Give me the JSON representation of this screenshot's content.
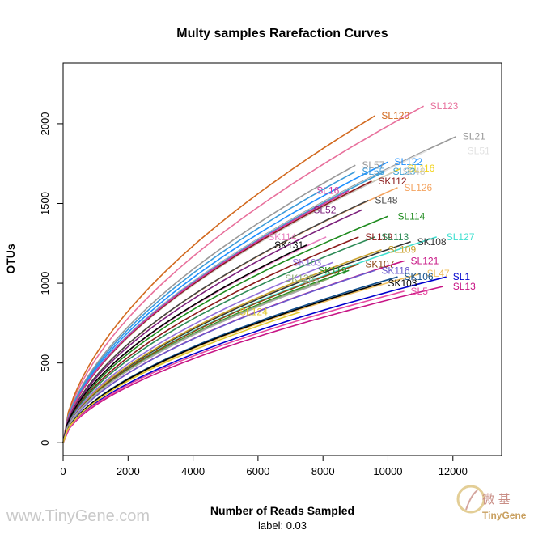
{
  "chart_data": {
    "type": "line",
    "title": "Multy samples Rarefaction Curves",
    "xlabel": "Number of Reads Sampled",
    "ylabel": "OTUs",
    "subtitle": "label: 0.03",
    "xlim": [
      0,
      13500
    ],
    "ylim": [
      -80,
      2380
    ],
    "xticks": [
      0,
      2000,
      4000,
      6000,
      8000,
      10000,
      12000
    ],
    "yticks": [
      0,
      500,
      1000,
      1500,
      2000
    ],
    "grid": false,
    "legend": "none",
    "series": [
      {
        "name": "SL123",
        "end_x": 11100,
        "end_y": 2110,
        "color": "#e8709c",
        "label_dx": 8,
        "label_dy": 0
      },
      {
        "name": "SL120",
        "end_x": 9600,
        "end_y": 2050,
        "color": "#d2691e",
        "label_dx": 8,
        "label_dy": 0
      },
      {
        "name": "SL21",
        "end_x": 12100,
        "end_y": 1920,
        "color": "#999999",
        "label_dx": 8,
        "label_dy": 0
      },
      {
        "name": "SL51",
        "end_x": 11200,
        "end_y": 1830,
        "color": "#e2e2e2",
        "label_dx": 50,
        "label_dy": 0
      },
      {
        "name": "SL122",
        "end_x": 10000,
        "end_y": 1760,
        "color": "#1e90ff",
        "label_dx": 8,
        "label_dy": 0
      },
      {
        "name": "SL116",
        "end_x": 10400,
        "end_y": 1720,
        "color": "#f2d31f",
        "label_dx": 8,
        "label_dy": 0
      },
      {
        "name": "SL57",
        "end_x": 9000,
        "end_y": 1740,
        "color": "#999999",
        "label_dx": 8,
        "label_dy": 0
      },
      {
        "name": "SL55",
        "end_x": 9000,
        "end_y": 1700,
        "color": "#3a9ad9",
        "label_dx": 8,
        "label_dy": 0
      },
      {
        "name": "SL23",
        "end_x": 9900,
        "end_y": 1700,
        "color": "#3aa0d6",
        "label_dx": 10,
        "label_dy": 0
      },
      {
        "name": "SL48",
        "end_x": 10200,
        "end_y": 1700,
        "color": "#c8c8c8",
        "label_dx": 10,
        "label_dy": 0
      },
      {
        "name": "SK112",
        "end_x": 9500,
        "end_y": 1640,
        "color": "#8b1a1a",
        "label_dx": 8,
        "label_dy": 0
      },
      {
        "name": "SL126",
        "end_x": 10300,
        "end_y": 1600,
        "color": "#f4a460",
        "label_dx": 8,
        "label_dy": 0
      },
      {
        "name": "SL16",
        "end_x": 8800,
        "end_y": 1580,
        "color": "#d4379e",
        "label_dx": -40,
        "label_dy": 0
      },
      {
        "name": "SL48",
        "end_x": 9400,
        "end_y": 1520,
        "color": "#444444",
        "label_dx": 8,
        "label_dy": 0
      },
      {
        "name": "SL52",
        "end_x": 9200,
        "end_y": 1460,
        "color": "#7b1f7b",
        "label_dx": -60,
        "label_dy": 0
      },
      {
        "name": "SL114",
        "end_x": 10000,
        "end_y": 1420,
        "color": "#1e8b1e",
        "label_dx": 12,
        "label_dy": 0
      },
      {
        "name": "SK114",
        "end_x": 8100,
        "end_y": 1290,
        "color": "#e87fbf",
        "label_dx": -72,
        "label_dy": 0
      },
      {
        "name": "SL119",
        "end_x": 9100,
        "end_y": 1290,
        "color": "#8b1a1a",
        "label_dx": 8,
        "label_dy": 0
      },
      {
        "name": "SL113",
        "end_x": 9600,
        "end_y": 1290,
        "color": "#2e8b57",
        "label_dx": 8,
        "label_dy": 0
      },
      {
        "name": "SL127",
        "end_x": 11500,
        "end_y": 1290,
        "color": "#40e0d0",
        "label_dx": 12,
        "label_dy": 0
      },
      {
        "name": "SK108",
        "end_x": 10700,
        "end_y": 1260,
        "color": "#333333",
        "label_dx": 8,
        "label_dy": 0
      },
      {
        "name": "SK131",
        "end_x": 7500,
        "end_y": 1240,
        "color": "#000000",
        "label_dx": -40,
        "label_dy": 0
      },
      {
        "name": "SL109",
        "end_x": 9800,
        "end_y": 1210,
        "color": "#c8a02b",
        "label_dx": 8,
        "label_dy": 0
      },
      {
        "name": "SL121",
        "end_x": 10500,
        "end_y": 1140,
        "color": "#c71585",
        "label_dx": 8,
        "label_dy": 0
      },
      {
        "name": "SK103",
        "end_x": 8300,
        "end_y": 1130,
        "color": "#9370db",
        "label_dx": -50,
        "label_dy": 0
      },
      {
        "name": "SK107",
        "end_x": 9100,
        "end_y": 1120,
        "color": "#8b4513",
        "label_dx": 8,
        "label_dy": 0
      },
      {
        "name": "SK119",
        "end_x": 8800,
        "end_y": 1080,
        "color": "#1e8b1e",
        "label_dx": -38,
        "label_dy": 0
      },
      {
        "name": "SK116",
        "end_x": 9600,
        "end_y": 1080,
        "color": "#6a5acd",
        "label_dx": 8,
        "label_dy": 0
      },
      {
        "name": "SL47",
        "end_x": 11000,
        "end_y": 1060,
        "color": "#f0c060",
        "label_dx": 8,
        "label_dy": 0
      },
      {
        "name": "SL1",
        "end_x": 11800,
        "end_y": 1040,
        "color": "#0000cd",
        "label_dx": 8,
        "label_dy": 0
      },
      {
        "name": "SK106",
        "end_x": 10300,
        "end_y": 1040,
        "color": "#104e8b",
        "label_dx": 8,
        "label_dy": 0
      },
      {
        "name": "SK128",
        "end_x": 8200,
        "end_y": 1030,
        "color": "#87a96b",
        "label_dx": -55,
        "label_dy": 0
      },
      {
        "name": "SL7",
        "end_x": 7900,
        "end_y": 1000,
        "color": "#aaaaaa",
        "label_dx": -22,
        "label_dy": 0
      },
      {
        "name": "SK103",
        "end_x": 9800,
        "end_y": 1000,
        "color": "#000000",
        "label_dx": 8,
        "label_dy": 0
      },
      {
        "name": "SL13",
        "end_x": 11700,
        "end_y": 980,
        "color": "#c71585",
        "label_dx": 12,
        "label_dy": 0
      },
      {
        "name": "SL5",
        "end_x": 10500,
        "end_y": 950,
        "color": "#e64aa0",
        "label_dx": 8,
        "label_dy": 0
      },
      {
        "name": "SL124",
        "end_x": 7300,
        "end_y": 820,
        "color": "#e0c82c",
        "label_dx": -75,
        "label_dy": 0
      }
    ]
  },
  "watermark": {
    "site": "www.TinyGene.com",
    "logo_cn": "微 基",
    "logo_en": "TinyGene"
  }
}
